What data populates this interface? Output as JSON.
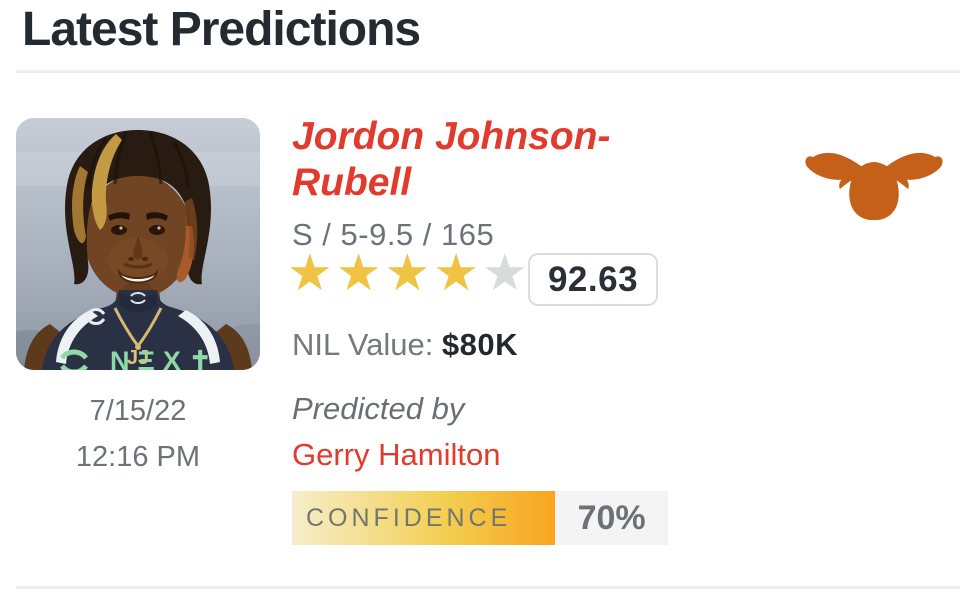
{
  "header": {
    "title": "Latest Predictions"
  },
  "player": {
    "name": "Jordon Johnson-Rubell",
    "position_line": "S / 5-9.5 / 165",
    "stars_filled": 4,
    "stars_total": 5,
    "rating_score": "92.63",
    "nil_label": "NIL Value: ",
    "nil_value": "$80K"
  },
  "prediction": {
    "date": "7/15/22",
    "time": "12:16 PM",
    "predicted_by_label": "Predicted by",
    "predictor_name": "Gerry Hamilton",
    "confidence_label": "CONFIDENCE",
    "confidence_pct": 70,
    "confidence_value": "70%"
  },
  "team": {
    "logo_icon": "texas-longhorns-logo"
  },
  "colors": {
    "accent_red": "#e03b2c",
    "star_gold": "#efc343",
    "star_empty": "#d9dadc",
    "team_orange": "#c5601a",
    "confidence_gradient_start": "#f6eecb",
    "confidence_gradient_end": "#f8a41e",
    "heading_dark": "#242a31",
    "text_gray": "#6e7277"
  }
}
